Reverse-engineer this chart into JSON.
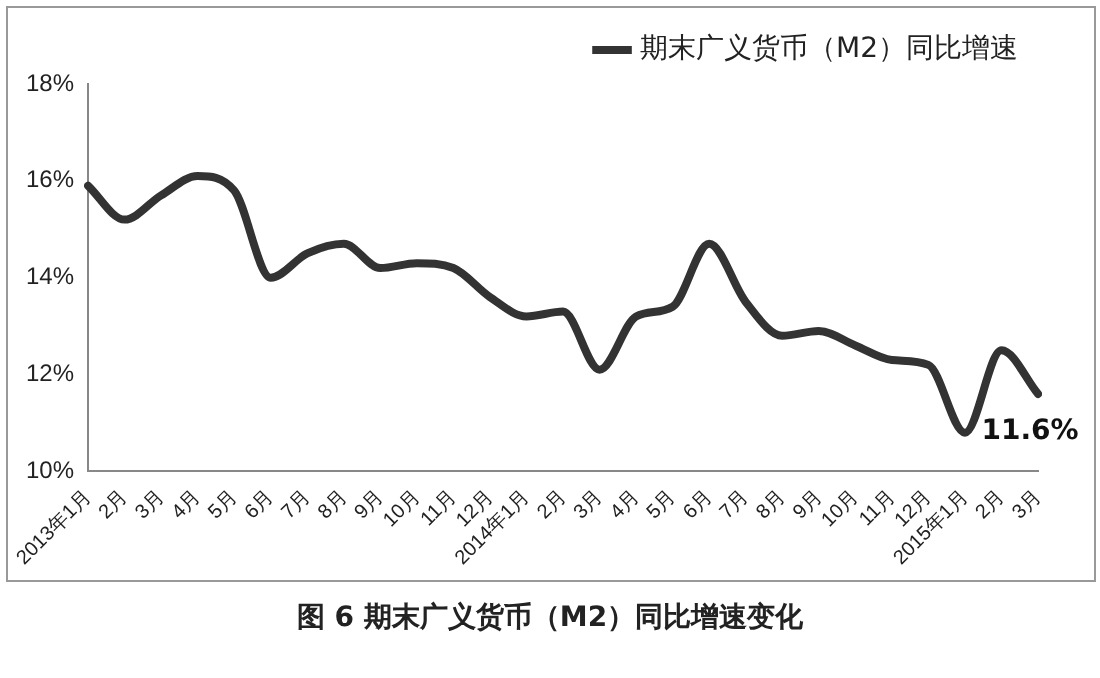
{
  "chart_data": {
    "type": "line",
    "title": "图 6 期末广义货币（M2）同比增速变化",
    "categories": [
      "2013年1月",
      "2月",
      "3月",
      "4月",
      "5月",
      "6月",
      "7月",
      "8月",
      "9月",
      "10月",
      "11月",
      "12月",
      "2014年1月",
      "2月",
      "3月",
      "4月",
      "5月",
      "6月",
      "7月",
      "8月",
      "9月",
      "10月",
      "11月",
      "12月",
      "2015年1月",
      "2月",
      "3月"
    ],
    "series": [
      {
        "name": "期末广义货币（M2）同比增速",
        "color": "#333333",
        "values": [
          15.9,
          15.2,
          15.7,
          16.1,
          15.8,
          14.0,
          14.5,
          14.7,
          14.2,
          14.3,
          14.2,
          13.6,
          13.2,
          13.3,
          12.1,
          13.2,
          13.4,
          14.7,
          13.5,
          12.8,
          12.9,
          12.6,
          12.3,
          12.2,
          10.8,
          12.5,
          11.6
        ],
        "value_labels": [
          null,
          null,
          null,
          null,
          null,
          null,
          null,
          null,
          null,
          null,
          null,
          null,
          null,
          null,
          null,
          null,
          null,
          null,
          null,
          null,
          null,
          null,
          null,
          null,
          null,
          null,
          "11.6%"
        ]
      }
    ],
    "ylim": [
      10,
      18
    ],
    "yticks": [
      {
        "value": 10,
        "label": "10%"
      },
      {
        "value": 12,
        "label": "12%"
      },
      {
        "value": 14,
        "label": "14%"
      },
      {
        "value": 16,
        "label": "16%"
      },
      {
        "value": 18,
        "label": "18%"
      }
    ],
    "grid": false,
    "legend": "top right",
    "marker": "none",
    "line_style": "solid"
  }
}
